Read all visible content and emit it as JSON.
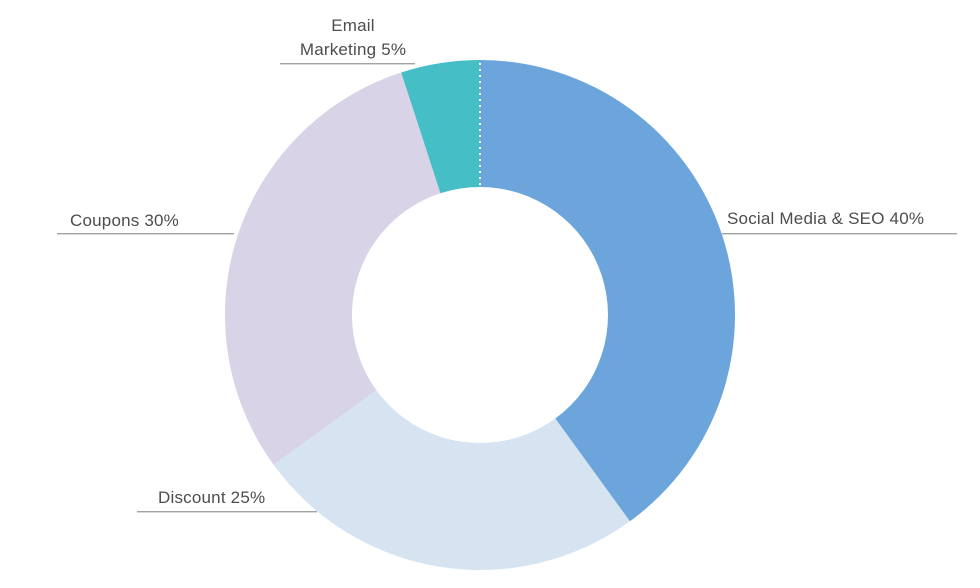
{
  "chart_data": {
    "type": "pie",
    "subtype": "donut",
    "title": "",
    "categories": [
      "Social Media & SEO",
      "Discount",
      "Coupons",
      "Email Marketing"
    ],
    "values": [
      40,
      25,
      30,
      5
    ],
    "unit": "%",
    "colors": [
      "#6BA5DB",
      "#D6E4F2",
      "#D8D3E7",
      "#45BEC5"
    ],
    "start_angle_deg": 0,
    "direction": "clockwise",
    "inner_radius_ratio": 0.5,
    "legend": "none",
    "grid": false,
    "data_labels": [
      "Social Media & SEO 40%",
      "Discount 25%",
      "Coupons 30%",
      "Email Marketing 5%"
    ]
  },
  "labels": {
    "social": "Social Media & SEO 40%",
    "discount": "Discount 25%",
    "coupons": "Coupons 30%",
    "email_line1": "Email",
    "email_line2": "Marketing 5%"
  },
  "style": {
    "background": "#ffffff",
    "label_text_color": "#4d4d4d",
    "leader_line_color": "#a3a3a3",
    "separator_color": "#ffffff"
  }
}
